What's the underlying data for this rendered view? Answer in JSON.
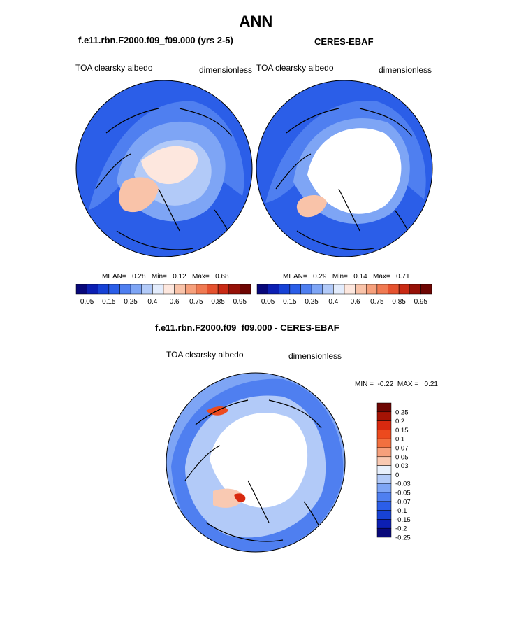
{
  "page": {
    "title": "ANN",
    "diff_title": "f.e11.rbn.F2000.f09_f09.000 - CERES-EBAF"
  },
  "palettes": {
    "main": [
      "#08087a",
      "#0c1fb3",
      "#1742d6",
      "#2b5ee8",
      "#4f7ff0",
      "#7ea5f5",
      "#b2caf8",
      "#e3ecfc",
      "#fde7de",
      "#f9c3a9",
      "#f6a07c",
      "#f07a52",
      "#e5522f",
      "#c92a14",
      "#961007",
      "#6e0603"
    ],
    "diff": [
      "#6e0603",
      "#a51305",
      "#d8290f",
      "#ec4a1e",
      "#f2703f",
      "#f6a07c",
      "#f9c9b2",
      "#e8f0fc",
      "#b2caf8",
      "#7ea5f5",
      "#4f7ff0",
      "#2b5ee8",
      "#1742d6",
      "#0c1fb3",
      "#08087a"
    ],
    "land_outline": "#000000",
    "polar_white": "#ffffff"
  },
  "chart_data": [
    {
      "type": "heatmap",
      "projection": "polar-stereographic-north",
      "title": "f.e11.rbn.F2000.f09_f09.000 (yrs 2-5)",
      "left_label": "TOA clearsky albedo",
      "right_label": "dimensionless",
      "stats": {
        "mean_label": "MEAN=",
        "mean": "0.28",
        "min_label": "Min=",
        "min": "0.12",
        "max_label": "Max=",
        "max": "0.68"
      },
      "colorbar": {
        "orientation": "horizontal",
        "tick_labels": [
          "0.05",
          "0.15",
          "0.25",
          "0.4",
          "0.6",
          "0.75",
          "0.85",
          "0.95"
        ]
      }
    },
    {
      "type": "heatmap",
      "projection": "polar-stereographic-north",
      "title": "CERES-EBAF",
      "left_label": "TOA clearsky albedo",
      "right_label": "dimensionless",
      "stats": {
        "mean_label": "MEAN=",
        "mean": "0.29",
        "min_label": "Min=",
        "min": "0.14",
        "max_label": "Max=",
        "max": "0.71"
      },
      "colorbar": {
        "orientation": "horizontal",
        "tick_labels": [
          "0.05",
          "0.15",
          "0.25",
          "0.4",
          "0.6",
          "0.75",
          "0.85",
          "0.95"
        ]
      }
    },
    {
      "type": "heatmap",
      "projection": "polar-stereographic-north",
      "title": "f.e11.rbn.F2000.f09_f09.000 - CERES-EBAF",
      "left_label": "TOA clearsky albedo",
      "right_label": "dimensionless",
      "stats": {
        "min_label": "MIN =",
        "min": "-0.22",
        "max_label": "MAX =",
        "max": "0.21"
      },
      "colorbar": {
        "orientation": "vertical",
        "tick_labels": [
          "0.25",
          "0.2",
          "0.15",
          "0.1",
          "0.07",
          "0.05",
          "0.03",
          "0",
          "-0.03",
          "-0.05",
          "-0.07",
          "-0.1",
          "-0.15",
          "-0.2",
          "-0.25"
        ]
      }
    }
  ]
}
